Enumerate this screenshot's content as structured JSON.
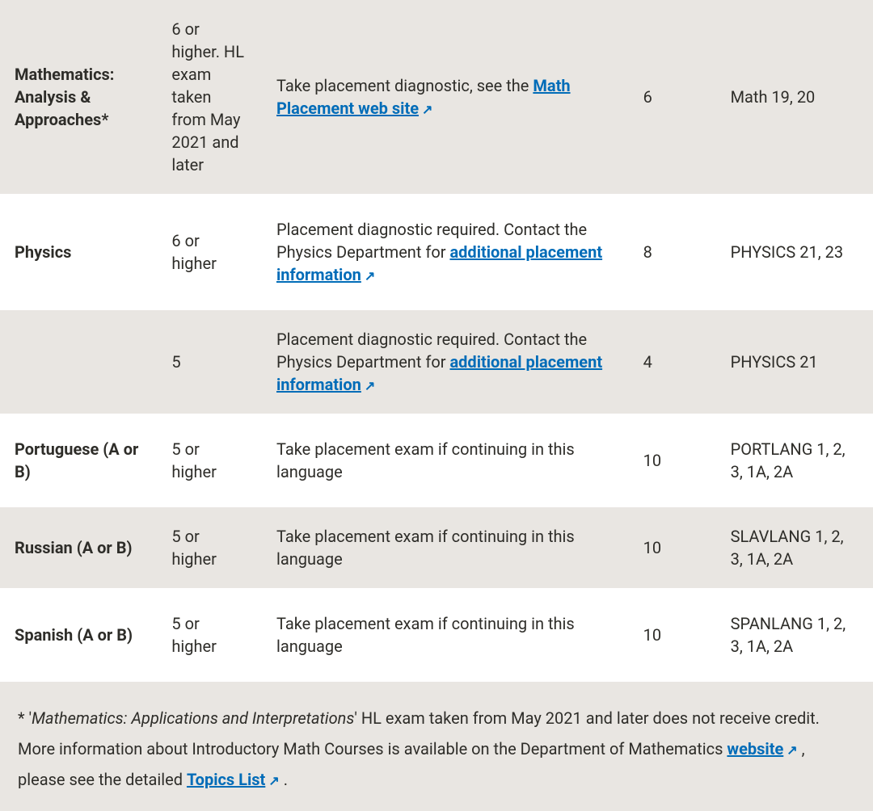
{
  "rows": [
    {
      "subject": "Mathematics: Analysis & Approaches*",
      "score": "6 or higher. HL exam taken from May 2021 and later",
      "placement_prefix": "Take placement diagnostic, see the ",
      "placement_link": "Math Placement web site",
      "placement_suffix": "",
      "units": "6",
      "duplicate": "Math 19, 20",
      "shaded": true
    },
    {
      "subject": "Physics",
      "score": "6 or higher",
      "placement_prefix": "Placement diagnostic required. Contact the Physics Department for ",
      "placement_link": "additional placement information",
      "placement_suffix": "",
      "units": "8",
      "duplicate": "PHYSICS 21, 23",
      "shaded": false
    },
    {
      "subject": "",
      "score": "5",
      "placement_prefix": "Placement diagnostic required. Contact the Physics Department for ",
      "placement_link": "additional placement information",
      "placement_suffix": "",
      "units": "4",
      "duplicate": "PHYSICS 21",
      "shaded": true
    },
    {
      "subject": "Portuguese (A or B)",
      "score": "5 or higher",
      "placement_prefix": "Take placement exam if continuing in this language",
      "placement_link": "",
      "placement_suffix": "",
      "units": "10",
      "duplicate": "PORTLANG 1, 2, 3, 1A, 2A",
      "shaded": false
    },
    {
      "subject": "Russian (A or B)",
      "score": "5 or higher",
      "placement_prefix": "Take placement exam if continuing in this language",
      "placement_link": "",
      "placement_suffix": "",
      "units": "10",
      "duplicate": "SLAVLANG 1, 2, 3, 1A, 2A",
      "shaded": true
    },
    {
      "subject": "Spanish (A or B)",
      "score": "5 or higher",
      "placement_prefix": "Take placement exam if continuing in this language",
      "placement_link": "",
      "placement_suffix": "",
      "units": "10",
      "duplicate": "SPANLANG 1, 2, 3, 1A, 2A",
      "shaded": false
    }
  ],
  "footnote": {
    "prefix": "*  '",
    "italic": "Mathematics: Applications and Interpretations",
    "mid1": "' HL exam taken from May 2021 and later does not receive credit. More information about Introductory Math Courses is available on the Department of Mathematics ",
    "link1": "website",
    "mid2": " , please see the detailed ",
    "link2": "Topics List",
    "suffix": " ."
  },
  "colors": {
    "shaded_bg": "#e9e6e2",
    "white_bg": "#ffffff",
    "link_color": "#006cb8",
    "text_color": "#2e2d29"
  }
}
